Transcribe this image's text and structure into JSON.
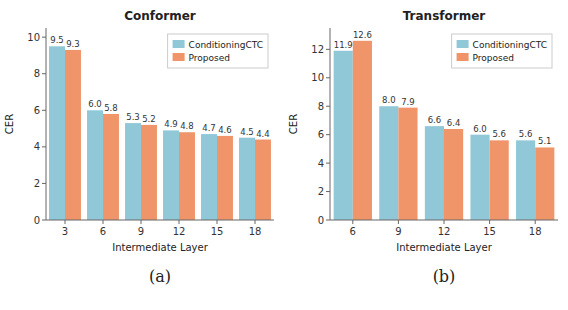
{
  "chart_data": [
    {
      "type": "bar",
      "title": "Conformer",
      "subtitle": "(a)",
      "xlabel": "Intermediate Layer",
      "ylabel": "CER",
      "categories": [
        "3",
        "6",
        "9",
        "12",
        "15",
        "18"
      ],
      "series": [
        {
          "name": "ConditioningCTC",
          "color": "#91c8d8",
          "values": [
            9.5,
            6.0,
            5.3,
            4.9,
            4.7,
            4.5
          ],
          "value_labels": [
            "9.5",
            "6.0",
            "5.3",
            "4.9",
            "4.7",
            "4.5"
          ]
        },
        {
          "name": "Proposed",
          "color": "#f0956a",
          "values": [
            9.3,
            5.8,
            5.2,
            4.8,
            4.6,
            4.4
          ],
          "value_labels": [
            "9.3",
            "5.8",
            "5.2",
            "4.8",
            "4.6",
            "4.4"
          ]
        }
      ],
      "ylim": [
        0,
        10.5
      ],
      "yticks": [
        0,
        2,
        4,
        6,
        8,
        10
      ],
      "legend": "upper right",
      "data_labels": true,
      "grid": false
    },
    {
      "type": "bar",
      "title": "Transformer",
      "subtitle": "(b)",
      "xlabel": "Intermediate Layer",
      "ylabel": "CER",
      "categories": [
        "6",
        "9",
        "12",
        "15",
        "18"
      ],
      "series": [
        {
          "name": "ConditioningCTC",
          "color": "#91c8d8",
          "values": [
            11.9,
            8.0,
            6.6,
            6.0,
            5.6
          ],
          "value_labels": [
            "11.9",
            "8.0",
            "6.6",
            "6.0",
            "5.6"
          ]
        },
        {
          "name": "Proposed",
          "color": "#f0956a",
          "values": [
            12.6,
            7.9,
            6.4,
            5.6,
            5.1
          ],
          "value_labels": [
            "12.6",
            "7.9",
            "6.4",
            "5.6",
            "5.1"
          ]
        }
      ],
      "ylim": [
        0,
        13.5
      ],
      "yticks": [
        0,
        2,
        4,
        6,
        8,
        10,
        12
      ],
      "legend": "upper right",
      "data_labels": true,
      "grid": false
    }
  ]
}
